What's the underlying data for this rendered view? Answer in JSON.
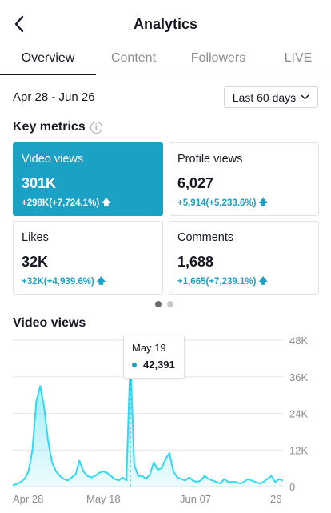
{
  "header": {
    "title": "Analytics"
  },
  "tabs": [
    {
      "label": "Overview",
      "active": true
    },
    {
      "label": "Content",
      "active": false
    },
    {
      "label": "Followers",
      "active": false
    },
    {
      "label": "LIVE",
      "active": false
    }
  ],
  "filters": {
    "date_range": "Apr 28 - Jun 26",
    "period": "Last 60 days"
  },
  "key_metrics": {
    "title": "Key metrics",
    "cards": [
      {
        "label": "Video views",
        "value": "301K",
        "delta": "+298K(+7,724.1%)"
      },
      {
        "label": "Profile views",
        "value": "6,027",
        "delta": "+5,914(+5,233.6%)"
      },
      {
        "label": "Likes",
        "value": "32K",
        "delta": "+32K(+4,939.6%)"
      },
      {
        "label": "Comments",
        "value": "1,688",
        "delta": "+1,665(+7,239.1%)"
      }
    ]
  },
  "pager": {
    "pages": 2,
    "current": 1
  },
  "colors": {
    "accent": "#1ba1c4",
    "line": "#2fd9f2"
  },
  "chart_data": {
    "type": "area",
    "title": "Video views",
    "x_ticks": [
      "Apr 28",
      "May 18",
      "Jun 07",
      "26"
    ],
    "y_ticks": [
      "48K",
      "36K",
      "24K",
      "12K",
      "0"
    ],
    "ylim": [
      0,
      48000
    ],
    "grid": true,
    "series": [
      {
        "values": [
          500,
          800,
          1500,
          2500,
          5000,
          12000,
          28000,
          33000,
          26000,
          15000,
          8000,
          5000,
          3500,
          2500,
          2000,
          3000,
          4000,
          8500,
          5000,
          3500,
          3000,
          3500,
          4500,
          5000,
          4500,
          3500,
          2500,
          2000,
          3000,
          2000,
          42391,
          7000,
          3500,
          3500,
          2500,
          4000,
          8000,
          5500,
          6000,
          9000,
          11000,
          5000,
          3000,
          2500,
          2000,
          3000,
          2000,
          1500,
          2000,
          3500,
          2500,
          2000,
          1500,
          1000,
          2500,
          1500,
          1500,
          1500,
          1000,
          1500,
          2500,
          2000,
          1500,
          1000,
          1500,
          2500,
          3500,
          1500,
          2500,
          2000
        ]
      }
    ],
    "tooltip": {
      "date": "May 19",
      "value": "42,391"
    }
  }
}
